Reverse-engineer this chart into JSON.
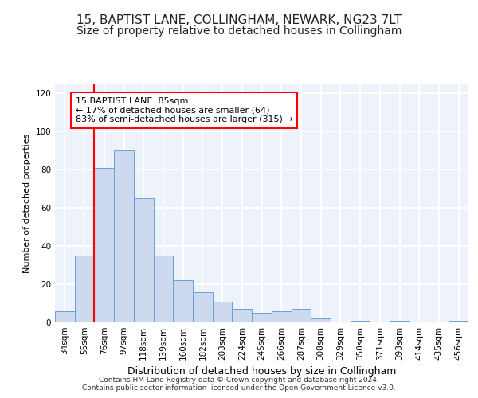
{
  "title": "15, BAPTIST LANE, COLLINGHAM, NEWARK, NG23 7LT",
  "subtitle": "Size of property relative to detached houses in Collingham",
  "xlabel": "Distribution of detached houses by size in Collingham",
  "ylabel": "Number of detached properties",
  "categories": [
    "34sqm",
    "55sqm",
    "76sqm",
    "97sqm",
    "118sqm",
    "139sqm",
    "160sqm",
    "182sqm",
    "203sqm",
    "224sqm",
    "245sqm",
    "266sqm",
    "287sqm",
    "308sqm",
    "329sqm",
    "350sqm",
    "371sqm",
    "393sqm",
    "414sqm",
    "435sqm",
    "456sqm"
  ],
  "values": [
    6,
    35,
    81,
    90,
    65,
    35,
    22,
    16,
    11,
    7,
    5,
    6,
    7,
    2,
    0,
    1,
    0,
    1,
    0,
    0,
    1
  ],
  "bar_color": "#ccd9ef",
  "bar_edge_color": "#6b9fd4",
  "ylim": [
    0,
    125
  ],
  "yticks": [
    0,
    20,
    40,
    60,
    80,
    100,
    120
  ],
  "red_line_x": 1.5,
  "annotation_box_text": "15 BAPTIST LANE: 85sqm\n← 17% of detached houses are smaller (64)\n83% of semi-detached houses are larger (315) →",
  "footer_line1": "Contains HM Land Registry data © Crown copyright and database right 2024.",
  "footer_line2": "Contains public sector information licensed under the Open Government Licence v3.0.",
  "background_color": "#eef2fb",
  "grid_color": "#ffffff",
  "title_fontsize": 11,
  "subtitle_fontsize": 10,
  "tick_fontsize": 7.5,
  "ylabel_fontsize": 8,
  "xlabel_fontsize": 9,
  "annotation_fontsize": 8
}
